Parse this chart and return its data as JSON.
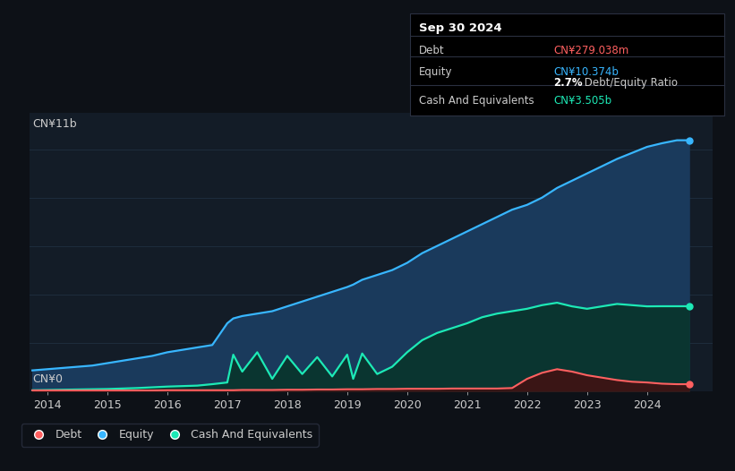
{
  "background_color": "#0d1117",
  "plot_bg_color": "#131c27",
  "equity_color": "#38b6ff",
  "equity_fill": "#1a3a5c",
  "debt_color": "#ff6060",
  "debt_fill": "#3a1515",
  "cash_color": "#1de9b6",
  "cash_fill": "#0a3530",
  "legend_border_color": "#2a3040",
  "grid_color": "#1e2d3d",
  "text_color": "#cccccc",
  "white": "#ffffff",
  "ylabel_top": "CN¥11b",
  "ylabel_bottom": "CN¥0",
  "x_ticks": [
    "2014",
    "2015",
    "2016",
    "2017",
    "2018",
    "2019",
    "2020",
    "2021",
    "2022",
    "2023",
    "2024"
  ],
  "years": [
    2013.75,
    2014.0,
    2014.25,
    2014.5,
    2014.75,
    2015.0,
    2015.25,
    2015.5,
    2015.75,
    2016.0,
    2016.25,
    2016.5,
    2016.75,
    2017.0,
    2017.1,
    2017.25,
    2017.5,
    2017.75,
    2018.0,
    2018.25,
    2018.5,
    2018.75,
    2019.0,
    2019.1,
    2019.25,
    2019.5,
    2019.75,
    2020.0,
    2020.25,
    2020.5,
    2020.75,
    2021.0,
    2021.25,
    2021.5,
    2021.75,
    2022.0,
    2022.25,
    2022.5,
    2022.75,
    2023.0,
    2023.25,
    2023.5,
    2023.75,
    2024.0,
    2024.25,
    2024.5,
    2024.7
  ],
  "equity": [
    0.85,
    0.9,
    0.95,
    1.0,
    1.05,
    1.15,
    1.25,
    1.35,
    1.45,
    1.6,
    1.7,
    1.8,
    1.9,
    2.8,
    3.0,
    3.1,
    3.2,
    3.3,
    3.5,
    3.7,
    3.9,
    4.1,
    4.3,
    4.4,
    4.6,
    4.8,
    5.0,
    5.3,
    5.7,
    6.0,
    6.3,
    6.6,
    6.9,
    7.2,
    7.5,
    7.7,
    8.0,
    8.4,
    8.7,
    9.0,
    9.3,
    9.6,
    9.85,
    10.1,
    10.25,
    10.374,
    10.374
  ],
  "debt": [
    0.02,
    0.02,
    0.02,
    0.02,
    0.02,
    0.02,
    0.02,
    0.02,
    0.02,
    0.03,
    0.03,
    0.03,
    0.03,
    0.03,
    0.03,
    0.04,
    0.04,
    0.04,
    0.05,
    0.05,
    0.06,
    0.06,
    0.07,
    0.07,
    0.07,
    0.08,
    0.08,
    0.09,
    0.09,
    0.09,
    0.1,
    0.1,
    0.1,
    0.1,
    0.12,
    0.5,
    0.75,
    0.9,
    0.8,
    0.65,
    0.55,
    0.45,
    0.38,
    0.35,
    0.3,
    0.279,
    0.279
  ],
  "cash": [
    0.03,
    0.04,
    0.05,
    0.06,
    0.07,
    0.08,
    0.1,
    0.12,
    0.15,
    0.18,
    0.2,
    0.22,
    0.28,
    0.35,
    1.5,
    0.8,
    1.6,
    0.5,
    1.45,
    0.7,
    1.4,
    0.6,
    1.5,
    0.5,
    1.55,
    0.7,
    1.0,
    1.6,
    2.1,
    2.4,
    2.6,
    2.8,
    3.05,
    3.2,
    3.3,
    3.4,
    3.55,
    3.65,
    3.5,
    3.4,
    3.5,
    3.6,
    3.55,
    3.5,
    3.505,
    3.505,
    3.505
  ],
  "ylim": [
    0,
    11.5
  ],
  "xlim": [
    2013.7,
    2025.1
  ]
}
